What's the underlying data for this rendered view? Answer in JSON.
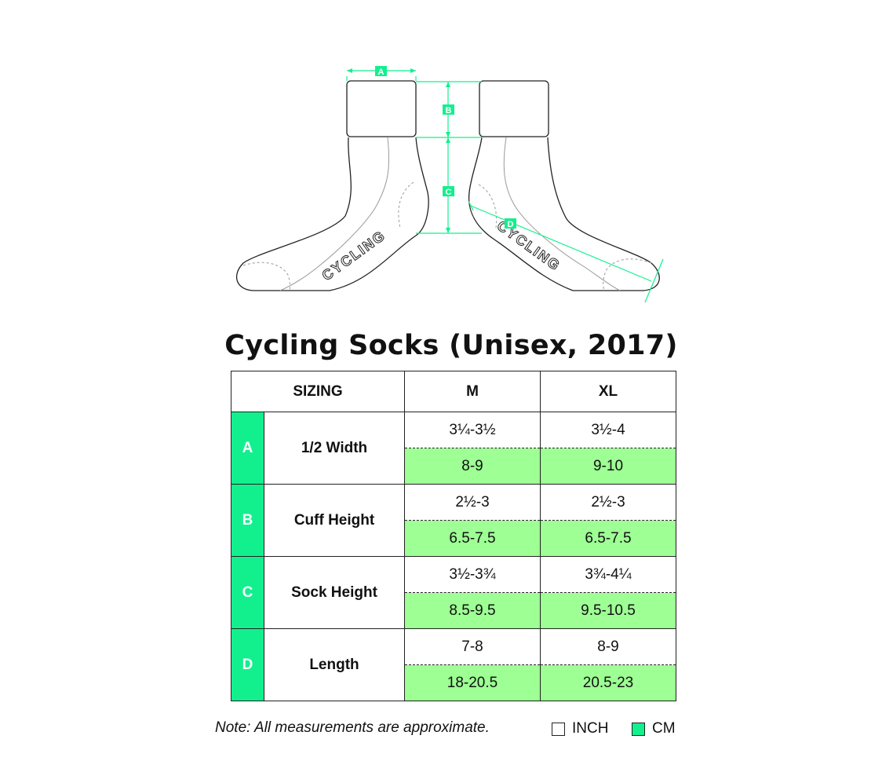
{
  "diagram": {
    "markers": [
      "A",
      "B",
      "C",
      "D"
    ],
    "sock_text": "CYCLING"
  },
  "title": "Cycling Socks (Unisex, 2017)",
  "table": {
    "header": {
      "sizing": "SIZING",
      "sizes": [
        "M",
        "XL"
      ]
    },
    "rows": [
      {
        "letter": "A",
        "label": "1/2 Width",
        "inch": [
          "3¼-3½",
          "3½-4"
        ],
        "cm": [
          "8-9",
          "9-10"
        ]
      },
      {
        "letter": "B",
        "label": "Cuff Height",
        "inch": [
          "2½-3",
          "2½-3"
        ],
        "cm": [
          "6.5-7.5",
          "6.5-7.5"
        ]
      },
      {
        "letter": "C",
        "label": "Sock Height",
        "inch": [
          "3½-3¾",
          "3¾-4¼"
        ],
        "cm": [
          "8.5-9.5",
          "9.5-10.5"
        ]
      },
      {
        "letter": "D",
        "label": "Length",
        "inch": [
          "7-8",
          "8-9"
        ],
        "cm": [
          "18-20.5",
          "20.5-23"
        ]
      }
    ]
  },
  "note": "Note: All measurements are approximate.",
  "legend": {
    "inch_label": "INCH",
    "cm_label": "CM"
  },
  "colors": {
    "accent": "#12f08e",
    "cm_fill": "#9dff94",
    "border": "#222222"
  }
}
